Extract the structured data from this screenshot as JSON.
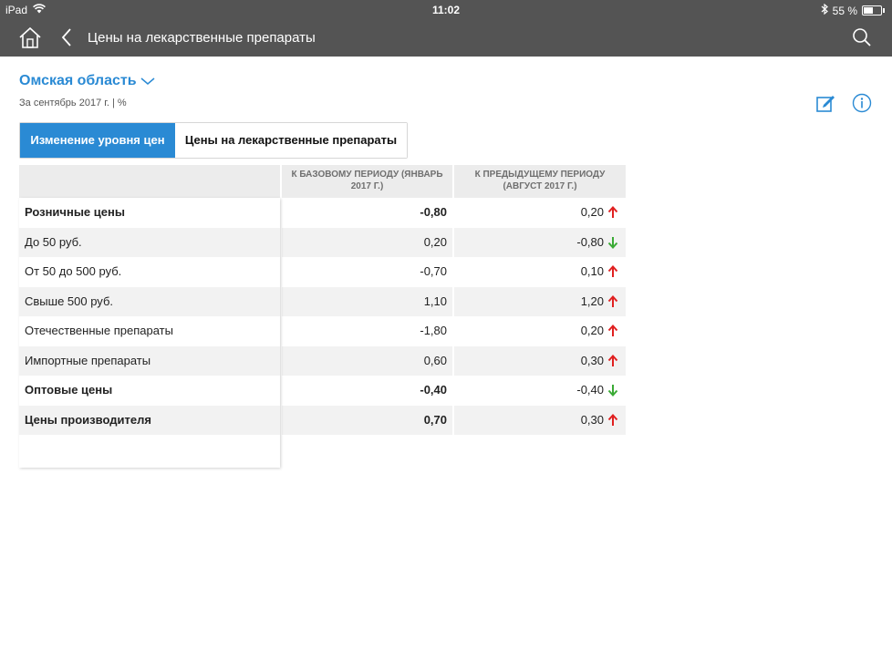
{
  "status_bar": {
    "device": "iPad",
    "time": "11:02",
    "battery": "55 %",
    "battery_level": 0.55
  },
  "nav": {
    "title": "Цены на лекарственные препараты"
  },
  "region": {
    "name": "Омская область",
    "period_note": "За сентябрь 2017 г. | %"
  },
  "tabs": [
    {
      "label": "Изменение уровня цен",
      "active": true
    },
    {
      "label": "Цены на лекарственные препараты",
      "active": false
    }
  ],
  "table": {
    "columns": [
      "",
      "К базовому периоду (январь 2017 г.)",
      "К предыдущему периоду (август 2017 г.)"
    ],
    "rows": [
      {
        "name": "Розничные цены",
        "base": "-0,80",
        "prev": "0,20",
        "trend": "up",
        "bold": true
      },
      {
        "name": "До 50 руб.",
        "base": "0,20",
        "prev": "-0,80",
        "trend": "down",
        "bold": false
      },
      {
        "name": "От 50 до 500 руб.",
        "base": "-0,70",
        "prev": "0,10",
        "trend": "up",
        "bold": false
      },
      {
        "name": "Свыше 500 руб.",
        "base": "1,10",
        "prev": "1,20",
        "trend": "up",
        "bold": false
      },
      {
        "name": "Отечественные препараты",
        "base": "-1,80",
        "prev": "0,20",
        "trend": "up",
        "bold": false
      },
      {
        "name": "Импортные препараты",
        "base": "0,60",
        "prev": "0,30",
        "trend": "up",
        "bold": false
      },
      {
        "name": "Оптовые цены",
        "base": "-0,40",
        "prev": "-0,40",
        "trend": "down",
        "bold": true
      },
      {
        "name": "Цены производителя",
        "base": "0,70",
        "prev": "0,30",
        "trend": "up",
        "bold": true
      }
    ]
  },
  "colors": {
    "accent": "#2a8ad4",
    "trend_up": "#e02020",
    "trend_down": "#3aaa35",
    "chrome": "#545454"
  }
}
